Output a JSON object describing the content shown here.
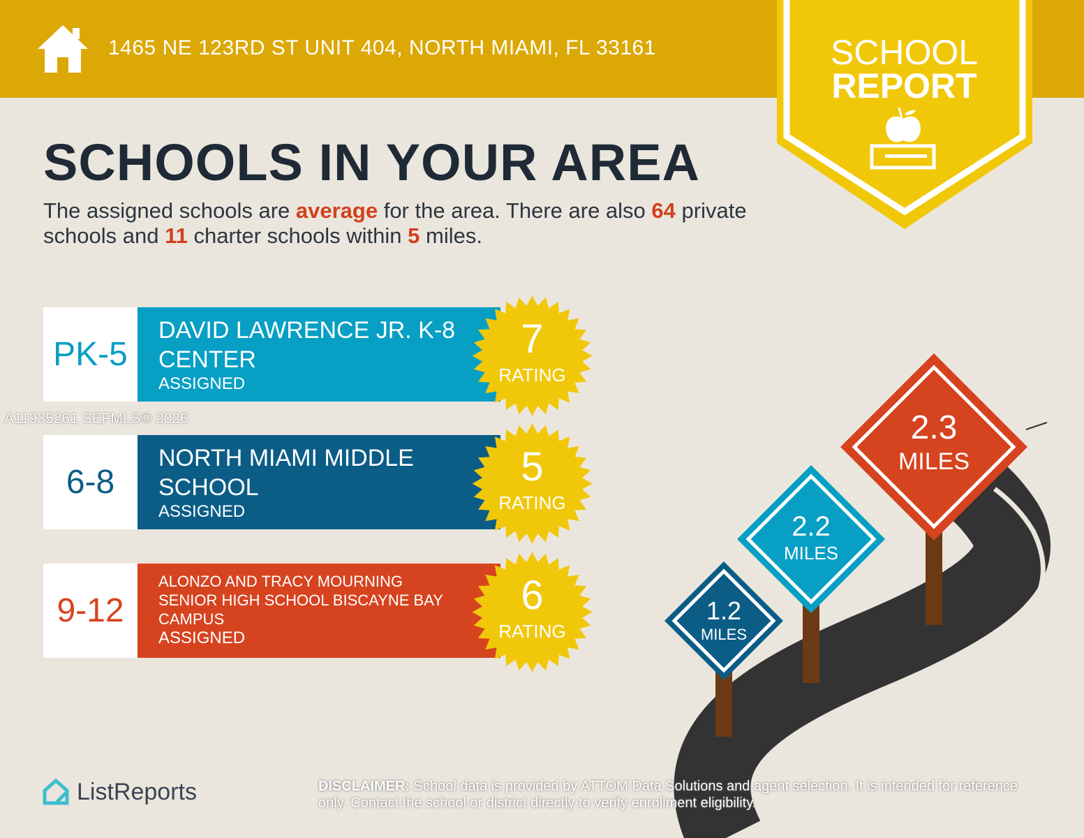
{
  "header": {
    "address": "1465 NE 123RD ST UNIT 404, NORTH MIAMI, FL 33161",
    "icon": "house-icon"
  },
  "badge": {
    "line1": "SCHOOL",
    "line2": "REPORT",
    "icon": "apple-on-book-icon"
  },
  "title": "SCHOOLS IN YOUR AREA",
  "intro": {
    "t1": "The assigned schools are ",
    "quality": "average",
    "t2": " for the area. There are also ",
    "private_count": "64",
    "t3": " private schools and ",
    "charter_count": "11",
    "t4": " charter schools within ",
    "miles": "5",
    "t5": " miles."
  },
  "schools": [
    {
      "grade": "PK-5",
      "name": "DAVID LAWRENCE JR. K-8 CENTER",
      "status": "ASSIGNED",
      "rating": "7",
      "rating_label": "RATING",
      "color": "#079fc4",
      "grade_color": "#079fc4"
    },
    {
      "grade": "6-8",
      "name": "NORTH MIAMI MIDDLE SCHOOL",
      "status": "ASSIGNED",
      "rating": "5",
      "rating_label": "RATING",
      "color": "#0b5d86",
      "grade_color": "#0b5d86"
    },
    {
      "grade": "9-12",
      "name": "ALONZO AND TRACY MOURNING SENIOR HIGH SCHOOL BISCAYNE BAY CAMPUS",
      "status": "ASSIGNED",
      "rating": "6",
      "rating_label": "RATING",
      "color": "#d6431f",
      "grade_color": "#d6431f"
    }
  ],
  "watermark": "A11935261  SEFMLS© 2026",
  "signs": [
    {
      "value": "1.2",
      "unit": "MILES",
      "color": "#0b5d86"
    },
    {
      "value": "2.2",
      "unit": "MILES",
      "color": "#079fc4"
    },
    {
      "value": "2.3",
      "unit": "MILES",
      "color": "#d6431f"
    }
  ],
  "footer": {
    "logo": "ListReports",
    "disclaimer_label": "DISCLAIMER:",
    "disclaimer": " School data is provided by ATTOM Data Solutions and agent selection. It is intended for reference only. Contact the school or district directly to verify enrollment eligibility."
  }
}
